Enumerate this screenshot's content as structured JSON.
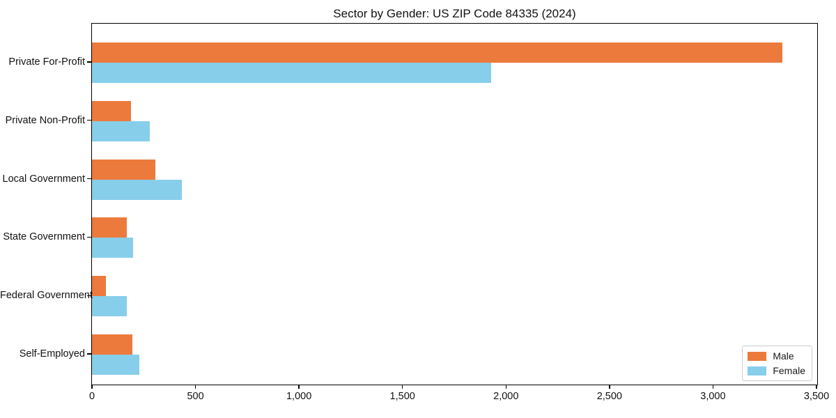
{
  "chart_data": {
    "type": "bar",
    "orientation": "horizontal",
    "title": "Sector by Gender: US ZIP Code 84335 (2024)",
    "categories": [
      "Private For-Profit",
      "Private Non-Profit",
      "Local Government",
      "State Government",
      "Federal Government",
      "Self-Employed"
    ],
    "series": [
      {
        "name": "Male",
        "color": "#EC7A3C",
        "values": [
          3335,
          188,
          305,
          168,
          67,
          195
        ]
      },
      {
        "name": "Female",
        "color": "#87CEEB",
        "values": [
          1930,
          278,
          433,
          198,
          168,
          228
        ]
      }
    ],
    "xlabel": "",
    "ylabel": "",
    "xlim": [
      0,
      3500
    ],
    "xticks": [
      0,
      500,
      1000,
      1500,
      2000,
      2500,
      3000,
      3500
    ],
    "xtick_labels": [
      "0",
      "500",
      "1,000",
      "1,500",
      "2,000",
      "2,500",
      "3,000",
      "3,500"
    ],
    "grid": false,
    "legend": {
      "position": "lower right",
      "entries": [
        "Male",
        "Female"
      ]
    }
  }
}
